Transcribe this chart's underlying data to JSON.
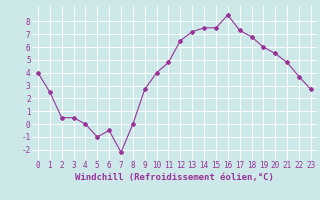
{
  "x": [
    0,
    1,
    2,
    3,
    4,
    5,
    6,
    7,
    8,
    9,
    10,
    11,
    12,
    13,
    14,
    15,
    16,
    17,
    18,
    19,
    20,
    21,
    22,
    23
  ],
  "y": [
    4,
    2.5,
    0.5,
    0.5,
    0,
    -1,
    -0.5,
    -2.2,
    0,
    2.7,
    4,
    4.8,
    6.5,
    7.2,
    7.5,
    7.5,
    8.5,
    7.3,
    6.8,
    6,
    5.5,
    4.8,
    3.7,
    2.7
  ],
  "line_color": "#993399",
  "marker": "D",
  "marker_size": 2,
  "bg_color": "#cce8e8",
  "grid_color": "#ffffff",
  "xlabel": "Windchill (Refroidissement éolien,°C)",
  "xlabel_color": "#993399",
  "ylabel_ticks": [
    -2,
    -1,
    0,
    1,
    2,
    3,
    4,
    5,
    6,
    7,
    8
  ],
  "ylim": [
    -2.8,
    9.2
  ],
  "xlim": [
    -0.5,
    23.5
  ],
  "tick_color": "#993399",
  "tick_fontsize": 5.5,
  "xlabel_fontsize": 6.5
}
